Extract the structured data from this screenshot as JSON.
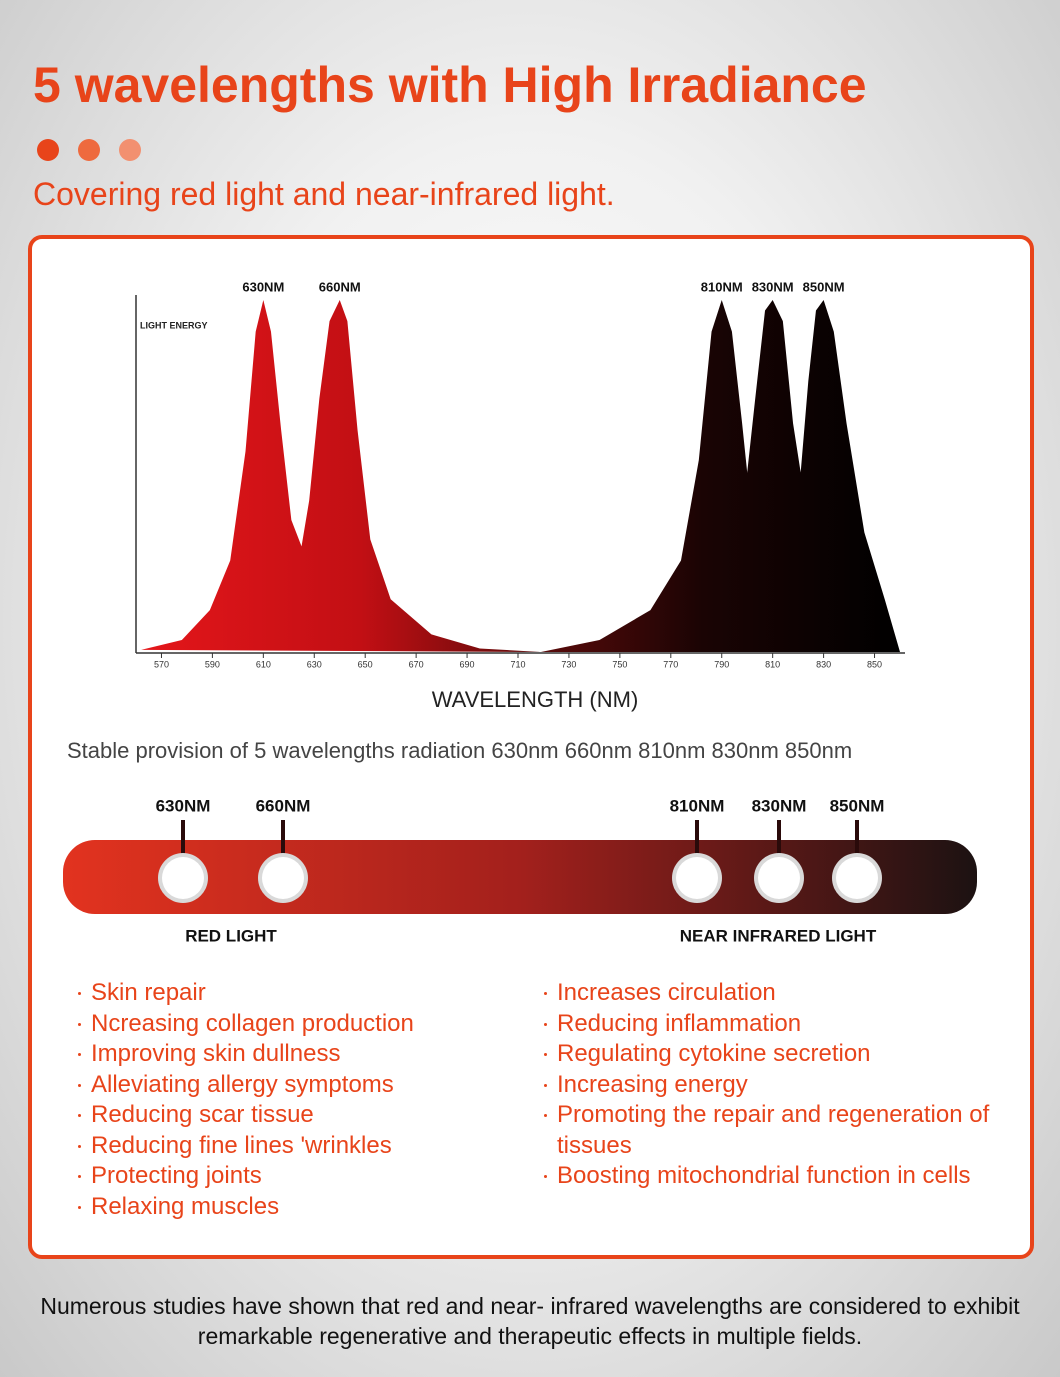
{
  "header": {
    "title": "5 wavelengths with High Irradiance",
    "subtitle": "Covering red light and near-infrared light."
  },
  "chart_data": {
    "type": "area",
    "y_label": "LIGHT ENERGY",
    "x_label": "WAVELENGTH (NM)",
    "xlim": [
      560,
      860
    ],
    "ylim": [
      0,
      100
    ],
    "xticks": [
      570,
      590,
      610,
      630,
      650,
      670,
      690,
      710,
      730,
      750,
      770,
      790,
      810,
      830,
      850
    ],
    "series": [
      {
        "color": "#dc1418",
        "x": [
          562,
          578,
          589,
          597,
          603,
          607,
          610,
          613,
          617,
          621,
          625,
          628,
          632,
          636,
          640,
          643,
          647,
          652,
          660,
          676,
          695,
          719
        ],
        "values": [
          0.6,
          3.4,
          11.9,
          26,
          57,
          91,
          100,
          91,
          63,
          37.5,
          30,
          43,
          72,
          94,
          100,
          94,
          63,
          32,
          15,
          5,
          1,
          0
        ]
      },
      {
        "color": "#120404",
        "x": [
          719,
          742,
          762,
          774,
          781,
          786,
          790,
          794,
          798,
          800,
          803,
          807,
          810,
          814,
          818,
          821,
          824,
          827,
          830,
          834,
          839,
          846,
          854,
          860
        ],
        "values": [
          0,
          3.4,
          11.9,
          26,
          54.5,
          91,
          100,
          91,
          65,
          51,
          71,
          97,
          100,
          94,
          65,
          51,
          77,
          97,
          100,
          91,
          65,
          34,
          15,
          0
        ]
      }
    ],
    "annotations": [
      "630NM",
      "660NM",
      "810NM",
      "830NM",
      "850NM"
    ]
  },
  "caption": "Stable provision of 5 wavelengths radiation 630nm 660nm 810nm 830nm 850nm",
  "band": {
    "markers": [
      "630NM",
      "660NM",
      "810NM",
      "830NM",
      "850NM"
    ],
    "groups": [
      "RED LIGHT",
      "NEAR INFRARED LIGHT"
    ]
  },
  "benefits": {
    "red": [
      "Skin repair",
      "Ncreasing collagen production",
      "Improving skin dullness",
      "Alleviating allergy symptoms",
      "Reducing scar tissue",
      "Reducing fine lines 'wrinkles",
      "Protecting joints",
      "Relaxing muscles"
    ],
    "nir": [
      "Increases circulation",
      "Reducing inflammation",
      "Regulating cytokine secretion",
      "Increasing energy",
      "Promoting the repair and regeneration of tissues",
      "Boosting mitochondrial function in cells"
    ]
  },
  "footer": "Numerous studies have shown that red and near- infrared wavelengths are considered to exhibit remarkable regenerative and therapeutic effects in multiple fields."
}
